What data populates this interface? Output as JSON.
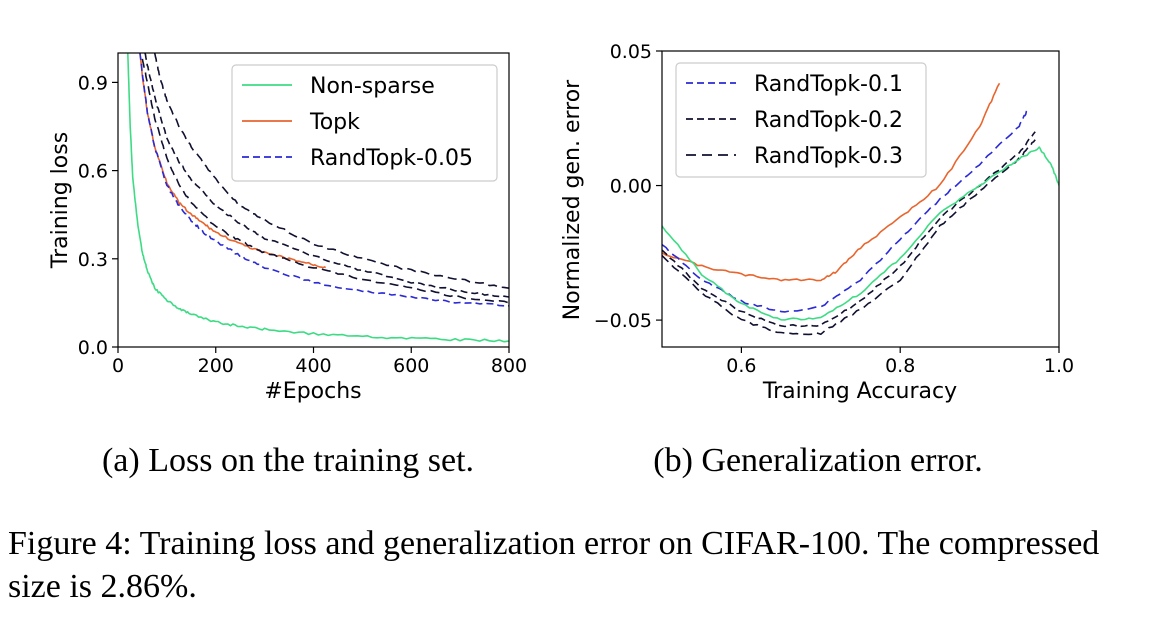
{
  "subcaptions": {
    "a": "(a) Loss on the training set.",
    "b": "(b) Generalization error."
  },
  "caption": "Figure 4: Training loss and generalization error on CIFAR-100. The compressed size is 2.86%.",
  "colors": {
    "non_sparse": "#3ddc84",
    "topk": "#e8652e",
    "randtopk_blue": "#2a2ad6",
    "randtopk_black": "#101030"
  },
  "chart_data": [
    {
      "type": "line",
      "xlabel": "#Epochs",
      "ylabel": "Training loss",
      "xlim": [
        0,
        800
      ],
      "ylim": [
        0,
        1.0
      ],
      "xticks": [
        0,
        200,
        400,
        600,
        800
      ],
      "xtick_labels": [
        "0",
        "200",
        "400",
        "600",
        "800"
      ],
      "yticks": [
        0,
        0.3,
        0.6,
        0.9
      ],
      "ytick_labels": [
        "0.0",
        "0.3",
        "0.6",
        "0.9"
      ],
      "grid": false,
      "legend_position": "top-right",
      "legend": [
        "Non-sparse",
        "Topk",
        "RandTopk-0.05"
      ],
      "series": [
        {
          "name": "Non-sparse",
          "style": "solid",
          "color": "#3ddc84",
          "x": [
            20,
            25,
            30,
            40,
            50,
            60,
            75,
            100,
            125,
            150,
            200,
            250,
            300,
            400,
            500,
            600,
            700,
            800
          ],
          "y": [
            1.0,
            0.75,
            0.58,
            0.42,
            0.32,
            0.26,
            0.2,
            0.16,
            0.13,
            0.11,
            0.085,
            0.07,
            0.06,
            0.045,
            0.035,
            0.03,
            0.025,
            0.02
          ]
        },
        {
          "name": "Topk",
          "style": "solid",
          "color": "#e8652e",
          "x": [
            45,
            50,
            60,
            75,
            100,
            125,
            150,
            175,
            200,
            250,
            300,
            350,
            400,
            425
          ],
          "y": [
            1.0,
            0.92,
            0.8,
            0.68,
            0.56,
            0.49,
            0.45,
            0.42,
            0.39,
            0.35,
            0.32,
            0.3,
            0.28,
            0.27
          ]
        },
        {
          "name": "RandTopk-0.05",
          "style": "dashed",
          "color": "#2a2ad6",
          "x": [
            45,
            50,
            60,
            75,
            100,
            125,
            150,
            175,
            200,
            250,
            300,
            400,
            500,
            600,
            700,
            800
          ],
          "y": [
            1.0,
            0.93,
            0.8,
            0.68,
            0.55,
            0.48,
            0.43,
            0.39,
            0.36,
            0.31,
            0.27,
            0.22,
            0.19,
            0.17,
            0.15,
            0.14
          ]
        },
        {
          "style": "dashed",
          "color": "#101030",
          "x": [
            50,
            60,
            75,
            100,
            125,
            150,
            200,
            250,
            300,
            400,
            500,
            600,
            700,
            800
          ],
          "y": [
            0.98,
            0.9,
            0.78,
            0.64,
            0.55,
            0.49,
            0.41,
            0.36,
            0.32,
            0.27,
            0.23,
            0.2,
            0.17,
            0.15
          ]
        },
        {
          "style": "dashed",
          "color": "#101030",
          "x": [
            55,
            65,
            80,
            100,
            125,
            150,
            200,
            250,
            300,
            400,
            500,
            600,
            700,
            800
          ],
          "y": [
            1.0,
            0.92,
            0.82,
            0.71,
            0.63,
            0.57,
            0.48,
            0.42,
            0.37,
            0.31,
            0.26,
            0.22,
            0.19,
            0.17
          ]
        },
        {
          "style": "dashed",
          "color": "#101030",
          "x": [
            75,
            85,
            100,
            125,
            150,
            200,
            250,
            300,
            400,
            500,
            600,
            700,
            800
          ],
          "y": [
            1.0,
            0.92,
            0.84,
            0.75,
            0.68,
            0.57,
            0.48,
            0.43,
            0.35,
            0.3,
            0.26,
            0.23,
            0.2
          ]
        }
      ]
    },
    {
      "type": "line",
      "xlabel": "Training Accuracy",
      "ylabel": "Normalized gen. error",
      "xlim": [
        0.5,
        1.0
      ],
      "ylim": [
        -0.06,
        0.05
      ],
      "xticks": [
        0.6,
        0.8,
        1.0
      ],
      "xtick_labels": [
        "0.6",
        "0.8",
        "1.0"
      ],
      "yticks": [
        -0.05,
        0.0,
        0.05
      ],
      "ytick_labels": [
        "−0.05",
        "0.00",
        "0.05"
      ],
      "grid": false,
      "legend_position": "top-left",
      "legend": [
        "RandTopk-0.1",
        "RandTopk-0.2",
        "RandTopk-0.3"
      ],
      "series": [
        {
          "style": "solid",
          "color": "#e8652e",
          "x": [
            0.5,
            0.55,
            0.6,
            0.65,
            0.7,
            0.72,
            0.75,
            0.8,
            0.85,
            0.9,
            0.925
          ],
          "y": [
            -0.025,
            -0.03,
            -0.033,
            -0.035,
            -0.035,
            -0.032,
            -0.023,
            -0.012,
            0.0,
            0.022,
            0.038
          ]
        },
        {
          "name": "RandTopk-0.1",
          "style": "dashed",
          "color": "#2a2ad6",
          "x": [
            0.5,
            0.55,
            0.6,
            0.65,
            0.7,
            0.75,
            0.8,
            0.85,
            0.9,
            0.95,
            0.96
          ],
          "y": [
            -0.022,
            -0.035,
            -0.043,
            -0.047,
            -0.045,
            -0.035,
            -0.02,
            -0.005,
            0.008,
            0.022,
            0.028
          ]
        },
        {
          "name": "RandTopk-0.2",
          "style": "dashed",
          "color": "#101030",
          "x": [
            0.5,
            0.55,
            0.6,
            0.65,
            0.7,
            0.75,
            0.8,
            0.85,
            0.9,
            0.95,
            0.97
          ],
          "y": [
            -0.024,
            -0.038,
            -0.047,
            -0.052,
            -0.052,
            -0.043,
            -0.03,
            -0.012,
            0.0,
            0.012,
            0.02
          ]
        },
        {
          "name": "RandTopk-0.3",
          "style": "dashed",
          "color": "#101030",
          "x": [
            0.5,
            0.55,
            0.6,
            0.65,
            0.7,
            0.75,
            0.8,
            0.85,
            0.9,
            0.95,
            0.97
          ],
          "y": [
            -0.026,
            -0.04,
            -0.05,
            -0.055,
            -0.055,
            -0.046,
            -0.035,
            -0.015,
            -0.002,
            0.01,
            0.017
          ]
        },
        {
          "style": "solid",
          "color": "#3ddc84",
          "x": [
            0.5,
            0.55,
            0.6,
            0.65,
            0.7,
            0.75,
            0.8,
            0.85,
            0.9,
            0.95,
            0.975,
            0.99,
            1.0
          ],
          "y": [
            -0.015,
            -0.033,
            -0.044,
            -0.05,
            -0.049,
            -0.04,
            -0.027,
            -0.01,
            0.0,
            0.01,
            0.014,
            0.008,
            0.0
          ]
        }
      ]
    }
  ]
}
